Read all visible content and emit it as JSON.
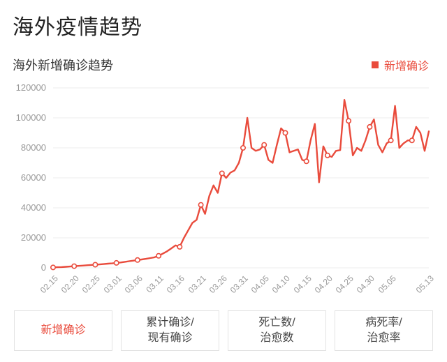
{
  "title": "海外疫情趋势",
  "subtitle": "海外新增确诊趋势",
  "legend": {
    "label": "新增确诊",
    "color": "#e94b3c"
  },
  "chart": {
    "type": "line",
    "background_color": "#ffffff",
    "grid_color": "#ececec",
    "axis_label_color": "#999999",
    "axis_label_fontsize": 13,
    "line_color": "#e94b3c",
    "line_width": 2.4,
    "marker_radius": 3.2,
    "marker_fill": "#ffffff",
    "marker_stroke": "#e94b3c",
    "marker_every": 5,
    "ylim": [
      0,
      120000
    ],
    "ytick_step": 20000,
    "yticks": [
      0,
      20000,
      40000,
      60000,
      80000,
      100000,
      120000
    ],
    "xtick_labels": [
      "02.15",
      "02.20",
      "02.25",
      "03.01",
      "03.06",
      "03.11",
      "03.16",
      "03.21",
      "03.26",
      "03.31",
      "04.05",
      "04.10",
      "04.15",
      "04.20",
      "04.25",
      "04.30",
      "05.05",
      "",
      "05.13"
    ],
    "xtick_every": 5,
    "values": [
      300,
      400,
      500,
      700,
      900,
      1100,
      1300,
      1500,
      1700,
      1900,
      2100,
      2300,
      2500,
      2800,
      3000,
      3300,
      3600,
      4000,
      4400,
      4800,
      5200,
      5600,
      6000,
      6500,
      7000,
      8000,
      9500,
      11000,
      13000,
      15000,
      14000,
      20000,
      25000,
      30000,
      32000,
      42000,
      36000,
      48000,
      55000,
      50000,
      63000,
      60000,
      63500,
      65000,
      70000,
      80000,
      100000,
      80000,
      78000,
      79000,
      82000,
      72000,
      70000,
      82000,
      93000,
      90000,
      77000,
      78000,
      79000,
      72000,
      71000,
      85000,
      96000,
      57000,
      81000,
      75000,
      74000,
      78000,
      78500,
      112000,
      98000,
      75000,
      80000,
      78000,
      85000,
      94000,
      99000,
      82000,
      77000,
      83000,
      85000,
      108000,
      80000,
      83000,
      85000,
      85000,
      94000,
      90000,
      78000,
      91000
    ]
  },
  "tabs": [
    {
      "line1": "新增确诊",
      "line2": "",
      "active": true
    },
    {
      "line1": "累计确诊/",
      "line2": "现有确诊",
      "active": false
    },
    {
      "line1": "死亡数/",
      "line2": "治愈数",
      "active": false
    },
    {
      "line1": "病死率/",
      "line2": "治愈率",
      "active": false
    }
  ],
  "colors": {
    "accent": "#e94b3c",
    "text": "#333333",
    "muted": "#999999",
    "border": "#e3e3e3"
  }
}
